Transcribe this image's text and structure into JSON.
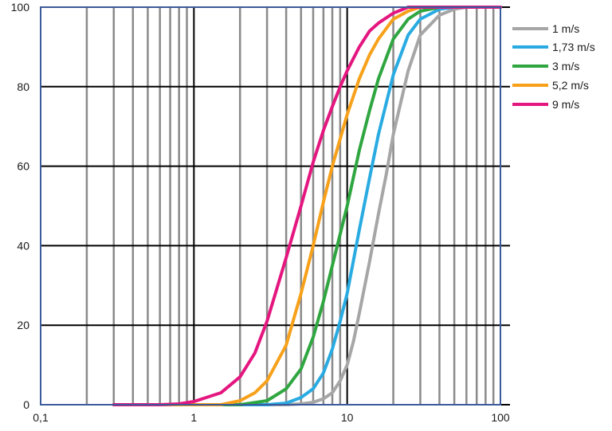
{
  "chart_data": {
    "type": "line",
    "x_scale": "log",
    "xlim": [
      0.1,
      100
    ],
    "ylim": [
      0,
      100
    ],
    "x_ticks": [
      0.1,
      1,
      10,
      100
    ],
    "x_tick_labels": [
      "0,1",
      "1",
      "10",
      "100"
    ],
    "y_ticks": [
      0,
      20,
      40,
      60,
      80,
      100
    ],
    "y_tick_labels": [
      "0",
      "20",
      "40",
      "60",
      "80",
      "100"
    ],
    "grid": true,
    "legend_position": "right",
    "frame_color": "#3a5a9c",
    "grid_color_major": "#000000",
    "grid_color_minor": "#8a8a8a",
    "series": [
      {
        "name": "1 m/s",
        "color": "#a6a6a6",
        "x": [
          0.3,
          3.0,
          4.0,
          5.0,
          6.0,
          7.0,
          8.0,
          9.0,
          10.0,
          11.0,
          12.0,
          14.0,
          16.0,
          18.0,
          20.0,
          25.0,
          30.0,
          40.0,
          50.0,
          60.0,
          100.0
        ],
        "y": [
          0,
          0,
          0,
          0.2,
          0.6,
          1.5,
          3,
          6,
          10,
          16,
          23,
          36,
          48,
          58,
          68,
          84,
          93,
          98,
          99.5,
          100,
          100
        ]
      },
      {
        "name": "1,73 m/s",
        "color": "#29abe2",
        "x": [
          0.3,
          3.0,
          4.0,
          5.0,
          6.0,
          7.0,
          8.0,
          9.0,
          10.0,
          12.0,
          14.0,
          16.0,
          20.0,
          25.0,
          30.0,
          40.0,
          50.0,
          60.0,
          100.0
        ],
        "y": [
          0,
          0,
          0.4,
          1.8,
          4,
          8,
          14,
          21,
          28,
          44,
          57,
          68,
          83,
          93,
          97,
          99.5,
          100,
          100,
          100
        ]
      },
      {
        "name": "3 m/s",
        "color": "#2fa640",
        "x": [
          0.3,
          2.0,
          3.0,
          4.0,
          5.0,
          6.0,
          7.0,
          8.0,
          10.0,
          12.0,
          14.0,
          16.0,
          20.0,
          25.0,
          30.0,
          40.0,
          50.0,
          100.0
        ],
        "y": [
          0,
          0,
          1,
          4,
          9,
          17,
          26,
          35,
          50,
          64,
          74,
          82,
          92,
          97,
          99,
          100,
          100,
          100
        ]
      },
      {
        "name": "5,2 m/s",
        "color": "#f7a11a",
        "x": [
          0.3,
          1.5,
          2.0,
          2.5,
          3.0,
          4.0,
          5.0,
          6.0,
          7.0,
          8.0,
          10.0,
          12.0,
          14.0,
          16.0,
          20.0,
          25.0,
          30.0,
          40.0,
          100.0
        ],
        "y": [
          0,
          0,
          1,
          3,
          6,
          15,
          28,
          40,
          51,
          60,
          73,
          82,
          88,
          92,
          97,
          99,
          100,
          100,
          100
        ]
      },
      {
        "name": "9 m/s",
        "color": "#e4167f",
        "x": [
          0.3,
          0.6,
          0.8,
          1.0,
          1.5,
          2.0,
          2.5,
          3.0,
          4.0,
          5.0,
          6.0,
          7.0,
          8.0,
          9.0,
          10.0,
          12.0,
          14.0,
          16.0,
          20.0,
          25.0,
          30.0,
          100.0
        ],
        "y": [
          0,
          0,
          0.2,
          0.8,
          3,
          7,
          13,
          21,
          37,
          50,
          61,
          69,
          75,
          80,
          84,
          90,
          94,
          96,
          98.5,
          100,
          100,
          100
        ]
      }
    ]
  }
}
